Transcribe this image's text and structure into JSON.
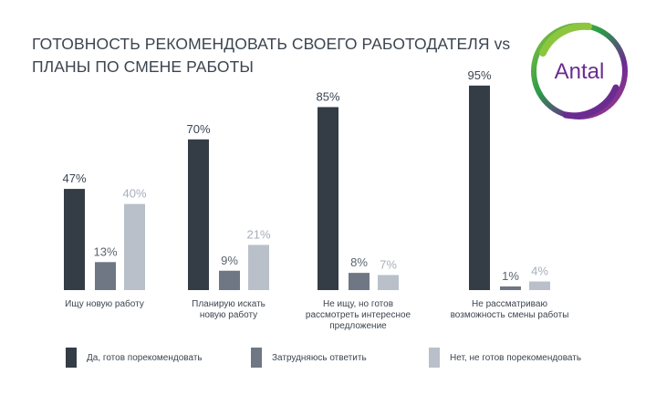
{
  "title_line1": "ГОТОВНОСТЬ РЕКОМЕНДОВАТЬ СВОЕГО РАБОТОДАТЕЛЯ vs",
  "title_line2": "ПЛАНЫ ПО СМЕНЕ РАБОТЫ",
  "logo_text": "Antal",
  "colors": {
    "series1": "#343d45",
    "series2": "#6f7784",
    "series3": "#b9c0c9",
    "label1": "#3c4550",
    "label2": "#5c6470",
    "label3": "#a7afba",
    "text": "#3c4550"
  },
  "chart_data": {
    "type": "bar",
    "title": "ГОТОВНОСТЬ РЕКОМЕНДОВАТЬ СВОЕГО РАБОТОДАТЕЛЯ vs ПЛАНЫ ПО СМЕНЕ РАБОТЫ",
    "ylim": [
      0,
      100
    ],
    "grid": false,
    "legend_placement": "bottom",
    "categories": [
      [
        "Ищу новую работу"
      ],
      [
        "Планирую искать",
        "новую работу"
      ],
      [
        "Не ищу, но готов",
        "рассмотреть интересное",
        "предложение"
      ],
      [
        "Не рассматриваю",
        "возможность смены работы"
      ]
    ],
    "series": [
      {
        "name": "Да, готов порекомендовать",
        "values": [
          47,
          70,
          85,
          95
        ],
        "labels": [
          "47%",
          "70%",
          "85%",
          "95%"
        ]
      },
      {
        "name": "Затрудняюсь ответить",
        "values": [
          13,
          9,
          8,
          1
        ],
        "labels": [
          "13%",
          "9%",
          "8%",
          "1%"
        ]
      },
      {
        "name": "Нет, не готов порекомендовать",
        "values": [
          40,
          21,
          7,
          4
        ],
        "labels": [
          "40%",
          "21%",
          "7%",
          "4%"
        ]
      }
    ]
  }
}
